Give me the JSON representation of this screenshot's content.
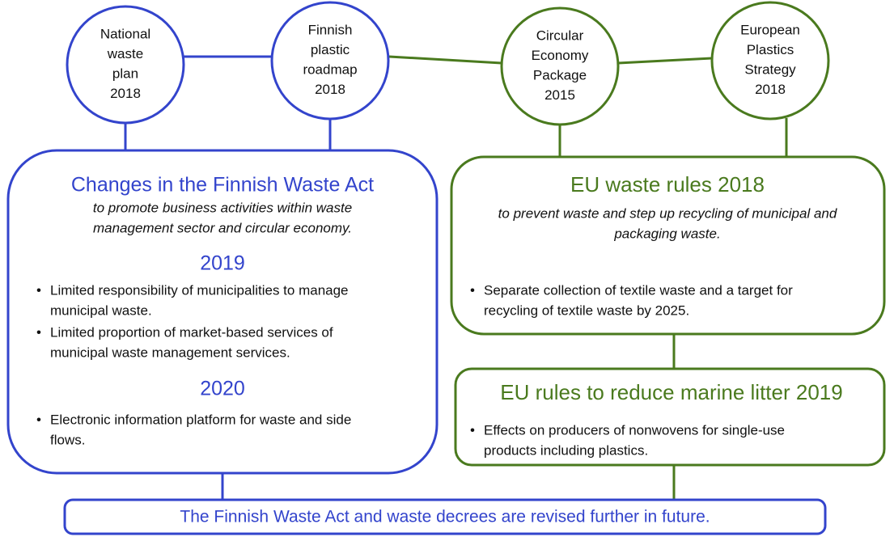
{
  "circles": [
    {
      "lines": [
        "National",
        "waste",
        "plan",
        "2018"
      ]
    },
    {
      "lines": [
        "Finnish",
        "plastic",
        "roadmap",
        "2018"
      ]
    },
    {
      "lines": [
        "Circular",
        "Economy",
        "Package",
        "2015"
      ]
    },
    {
      "lines": [
        "European",
        "Plastics",
        "Strategy",
        "2018"
      ]
    }
  ],
  "finnish_box": {
    "title": "Changes in the Finnish Waste Act",
    "subtitle": [
      "to promote business activities within waste",
      "management sector and circular economy."
    ],
    "sections": [
      {
        "year": "2019",
        "bullets": [
          [
            "Limited responsibility of municipalities to manage",
            "municipal waste."
          ],
          [
            "Limited proportion of market-based services of",
            "municipal waste management services."
          ]
        ]
      },
      {
        "year": "2020",
        "bullets": [
          [
            "Electronic information platform for waste and side",
            "flows."
          ]
        ]
      }
    ]
  },
  "eu_box": {
    "title": "EU waste rules 2018",
    "subtitle": [
      "to prevent waste and step up recycling of municipal and",
      "packaging waste."
    ],
    "bullets": [
      [
        "Separate collection of textile waste and a target for",
        "recycling of textile waste by 2025."
      ]
    ]
  },
  "marine_box": {
    "title": "EU rules to reduce marine litter 2019",
    "bullets": [
      [
        "Effects on producers of nonwovens for single-use",
        "products including plastics."
      ]
    ]
  },
  "footer": "The Finnish Waste Act and waste decrees are revised further in future."
}
